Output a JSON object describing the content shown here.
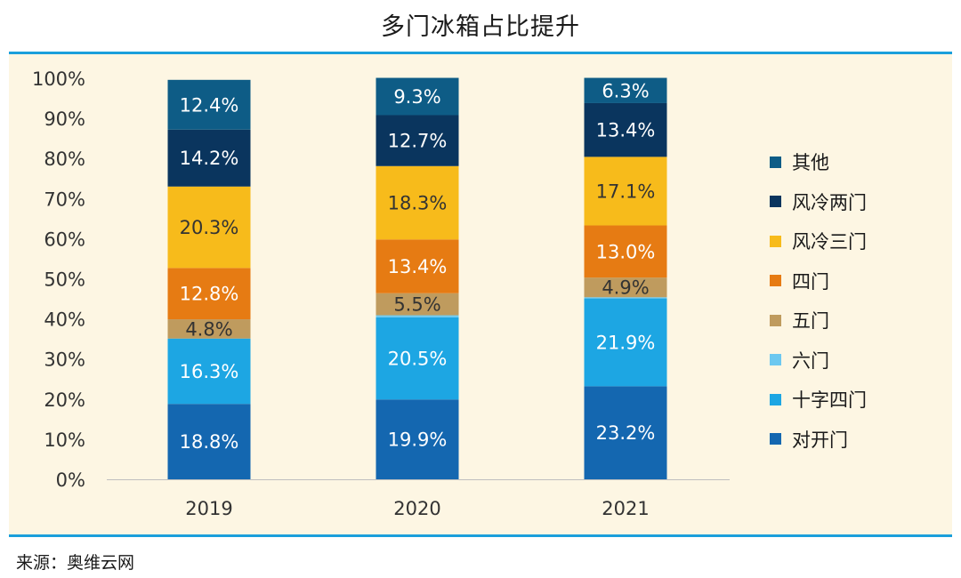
{
  "title": "多门冰箱占比提升",
  "source": "来源：奥维云网",
  "chart_data": {
    "type": "bar",
    "stacked": true,
    "categories": [
      "2019",
      "2020",
      "2021"
    ],
    "y_ticks": [
      "0%",
      "10%",
      "20%",
      "30%",
      "40%",
      "50%",
      "60%",
      "70%",
      "80%",
      "90%",
      "100%"
    ],
    "ylim": [
      0,
      100
    ],
    "legend_position": "right",
    "series": [
      {
        "name": "对开门",
        "color": "#1467b0",
        "values": [
          18.8,
          19.9,
          23.2
        ],
        "labels": [
          "18.8%",
          "19.9%",
          "23.2%"
        ]
      },
      {
        "name": "十字四门",
        "color": "#1da6e3",
        "values": [
          16.3,
          20.5,
          21.9
        ],
        "labels": [
          "16.3%",
          "20.5%",
          "21.9%"
        ]
      },
      {
        "name": "六门",
        "color": "#6cc8f0",
        "values": [
          0,
          0.5,
          0.3
        ],
        "labels": [
          "",
          "",
          ""
        ]
      },
      {
        "name": "五门",
        "color": "#bf9b5e",
        "values": [
          4.8,
          5.5,
          4.9
        ],
        "labels": [
          "4.8%",
          "5.5%",
          "4.9%"
        ]
      },
      {
        "name": "四门",
        "color": "#e67b13",
        "values": [
          12.8,
          13.4,
          13.0
        ],
        "labels": [
          "12.8%",
          "13.4%",
          "13.0%"
        ]
      },
      {
        "name": "风冷三门",
        "color": "#f7bb1b",
        "values": [
          20.3,
          18.3,
          17.1
        ],
        "labels": [
          "20.3%",
          "18.3%",
          "17.1%"
        ]
      },
      {
        "name": "风冷两门",
        "color": "#0a355e",
        "values": [
          14.2,
          12.7,
          13.4
        ],
        "labels": [
          "14.2%",
          "12.7%",
          "13.4%"
        ]
      },
      {
        "name": "其他",
        "color": "#0e5c86",
        "values": [
          12.4,
          9.3,
          6.3
        ],
        "labels": [
          "12.4%",
          "9.3%",
          "6.3%"
        ]
      }
    ],
    "legend_order": [
      "其他",
      "风冷两门",
      "风冷三门",
      "四门",
      "五门",
      "六门",
      "十字四门",
      "对开门"
    ]
  }
}
